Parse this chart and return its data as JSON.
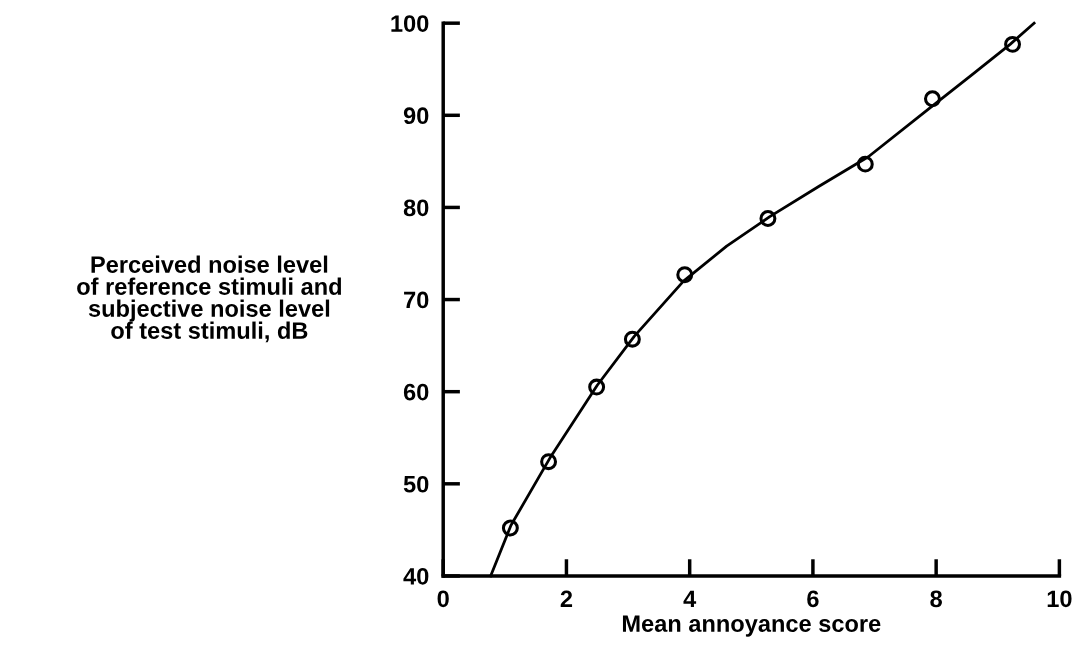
{
  "chart_data": {
    "type": "scatter",
    "xlabel": "Mean annoyance score",
    "ylabel": "Perceived noise level\nof reference stimuli and\nsubjective noise level\nof test stimuli, dB",
    "xlim": [
      0,
      10
    ],
    "ylim": [
      40,
      100
    ],
    "xticks": [
      0,
      2,
      4,
      6,
      8,
      10
    ],
    "yticks": [
      40,
      50,
      60,
      70,
      80,
      90,
      100
    ],
    "grid": false,
    "marker": "circle",
    "series": [
      {
        "color": "#000000",
        "x": [
          1.09,
          1.71,
          2.49,
          3.07,
          3.92,
          5.27,
          6.85,
          7.94,
          9.24
        ],
        "values": [
          45.2,
          52.4,
          60.5,
          65.7,
          72.7,
          78.8,
          84.7,
          91.8,
          97.7
        ]
      },
      {
        "type": "line",
        "color": "#000000",
        "marker": "none",
        "line_style": "solid",
        "x": [
          0.77,
          1.1,
          1.75,
          2.5,
          3.1,
          3.9,
          4.6,
          5.3,
          6.1,
          6.9,
          7.9,
          8.6,
          9.2,
          9.59
        ],
        "values": [
          40,
          45.5,
          53,
          60.7,
          66,
          72,
          75.8,
          79,
          82.3,
          85.5,
          90.8,
          94.5,
          97.7,
          100
        ]
      }
    ]
  }
}
